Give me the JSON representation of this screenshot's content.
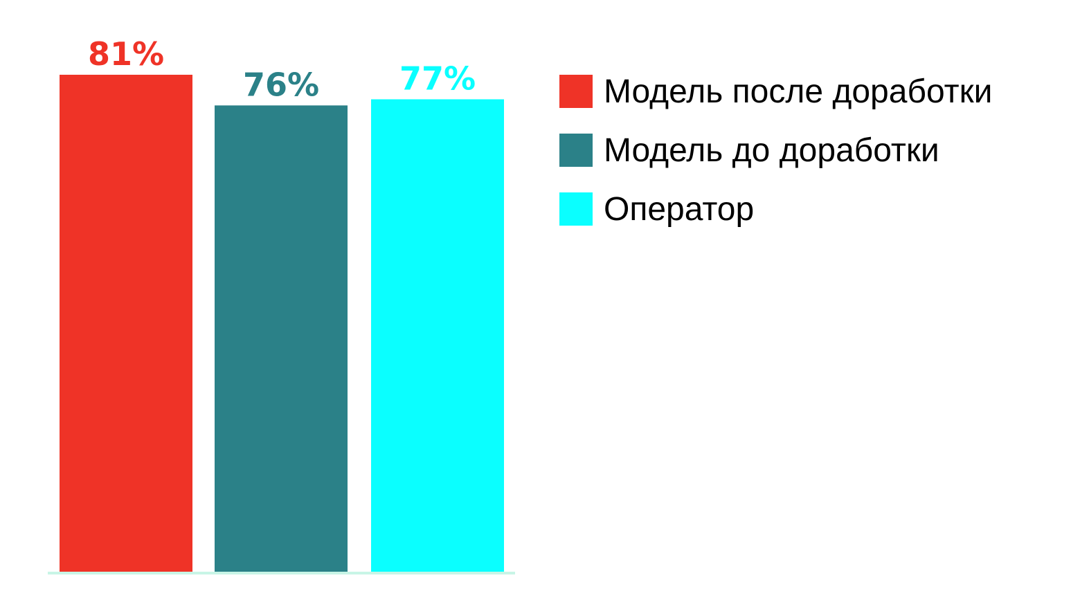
{
  "chart_data": {
    "type": "bar",
    "categories": [
      "Модель после доработки",
      "Модель до доработки",
      "Оператор"
    ],
    "series": [
      {
        "name": "Модель после доработки",
        "value": 81,
        "label": "81%",
        "color": "#EF3327"
      },
      {
        "name": "Модель до доработки",
        "value": 76,
        "label": "76%",
        "color": "#2B8188"
      },
      {
        "name": "Оператор",
        "value": 77,
        "label": "77%",
        "color": "#0AFFFF"
      }
    ],
    "unit": "%",
    "legend_position": "top-right",
    "axis_line_color": "#C8F5E6",
    "grid": false
  }
}
